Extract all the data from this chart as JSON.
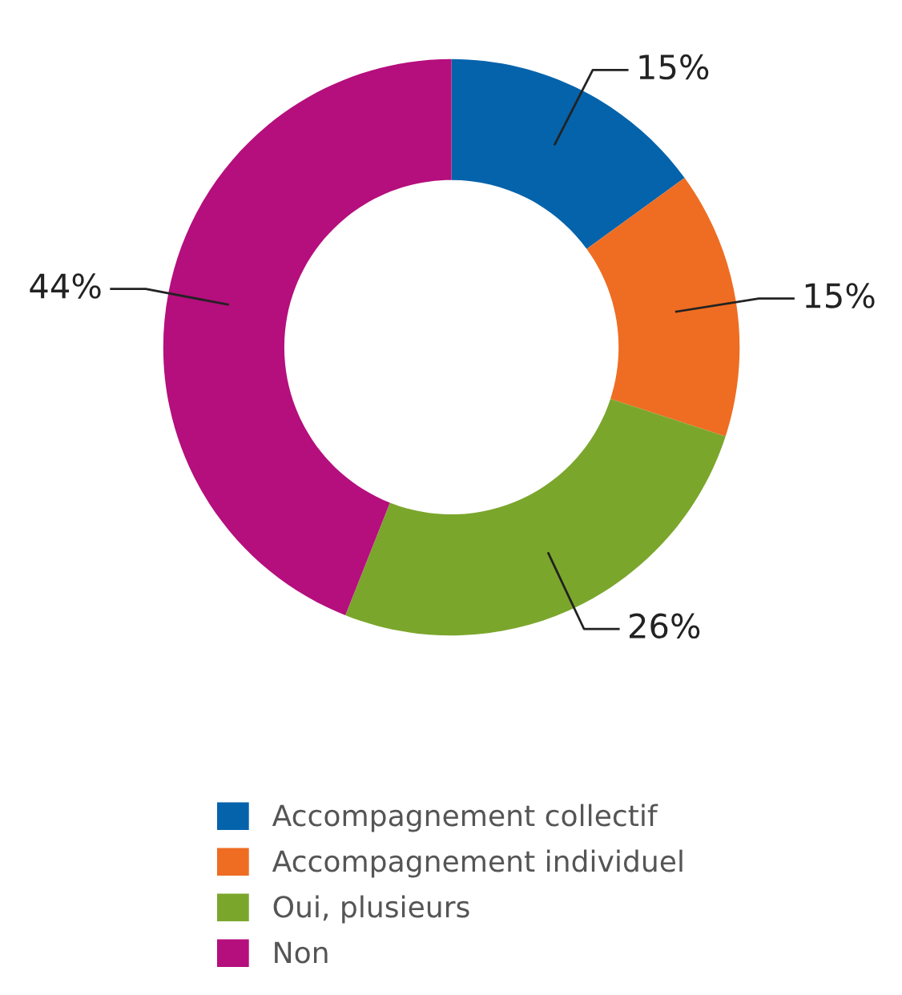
{
  "chart_data": {
    "type": "donut",
    "categories": [
      "Accompagnement collectif",
      "Accompagnement individuel",
      "Oui, plusieurs",
      "Non"
    ],
    "values": [
      15,
      15,
      26,
      44
    ],
    "colors": [
      "#0563ac",
      "#ee6d22",
      "#7ba62c",
      "#b50e7d"
    ],
    "value_labels": [
      "15%",
      "15%",
      "26%",
      "44%"
    ],
    "legend": "bottom"
  }
}
